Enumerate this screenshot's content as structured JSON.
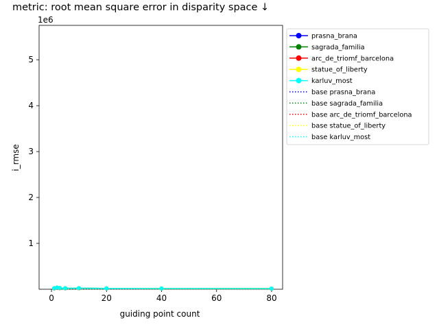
{
  "chart_data": {
    "type": "line",
    "title": "metric: root mean square error in disparity space ↓",
    "xlabel": "guiding point count",
    "ylabel": "i_rmse",
    "y_offset_label": "1e6",
    "xlim": [
      -4.5,
      84.0
    ],
    "ylim": [
      0,
      5750000
    ],
    "x_ticks": [
      0,
      20,
      40,
      60,
      80
    ],
    "y_ticks": [
      1000000,
      2000000,
      3000000,
      4000000,
      5000000
    ],
    "y_tick_labels": [
      "1",
      "2",
      "3",
      "4",
      "5"
    ],
    "x": [
      1,
      2,
      3,
      5,
      10,
      20,
      40,
      80
    ],
    "grid": false,
    "legend_position": "outside-right",
    "series": [
      {
        "name": "prasna_brana",
        "color": "#0000ff",
        "style": "solid-marker",
        "values": [
          18000,
          32000,
          24000,
          20000,
          21000,
          17000,
          15000,
          12000
        ]
      },
      {
        "name": "sagrada_familia",
        "color": "#008000",
        "style": "solid-marker",
        "values": [
          20000,
          35000,
          26000,
          22000,
          23000,
          18000,
          16000,
          14000
        ]
      },
      {
        "name": "arc_de_triomf_barcelona",
        "color": "#ff0000",
        "style": "solid-marker",
        "values": [
          17000,
          30000,
          23000,
          19000,
          20000,
          16000,
          14000,
          13000
        ]
      },
      {
        "name": "statue_of_liberty",
        "color": "#ffff00",
        "style": "solid-marker",
        "values": [
          19000,
          33000,
          25000,
          21000,
          22000,
          17000,
          15000,
          13000
        ]
      },
      {
        "name": "karluv_most",
        "color": "#00ffff",
        "style": "solid-marker",
        "values": [
          21000,
          36000,
          27000,
          23000,
          24000,
          19000,
          17000,
          15000
        ]
      },
      {
        "name": "base prasna_brana",
        "color": "#0000ff",
        "style": "dotted",
        "values": [
          9000,
          9000,
          9000,
          9000,
          9000,
          9000,
          9000,
          9000
        ]
      },
      {
        "name": "base sagrada_familia",
        "color": "#008000",
        "style": "dotted",
        "values": [
          9500,
          9500,
          9500,
          9500,
          9500,
          9500,
          9500,
          9500
        ]
      },
      {
        "name": "base arc_de_triomf_barcelona",
        "color": "#ff0000",
        "style": "dotted",
        "values": [
          8500,
          8500,
          8500,
          8500,
          8500,
          8500,
          8500,
          8500
        ]
      },
      {
        "name": "base statue_of_liberty",
        "color": "#ffff00",
        "style": "dotted",
        "values": [
          9200,
          9200,
          9200,
          9200,
          9200,
          9200,
          9200,
          9200
        ]
      },
      {
        "name": "base karluv_most",
        "color": "#00ffff",
        "style": "dotted",
        "values": [
          10000,
          10000,
          10000,
          10000,
          10000,
          10000,
          10000,
          10000
        ]
      }
    ]
  }
}
